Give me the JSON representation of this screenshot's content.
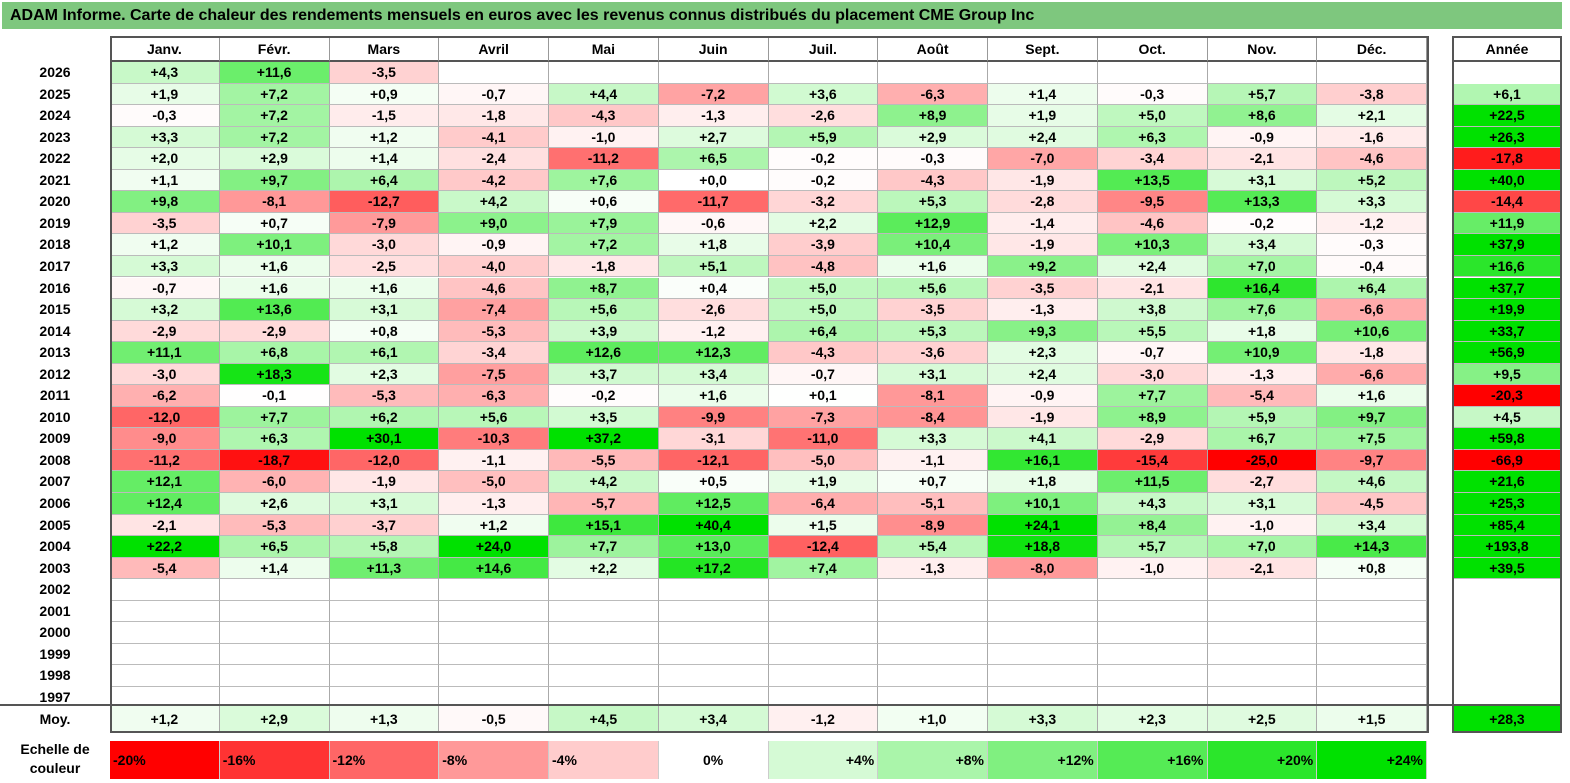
{
  "title": "ADAM Informe. Carte de chaleur des rendements mensuels en euros avec les revenus connus distribués du placement CME Group Inc",
  "chart_data": {
    "type": "heatmap",
    "months": [
      "Janv.",
      "Févr.",
      "Mars",
      "Avril",
      "Mai",
      "Juin",
      "Juil.",
      "Août",
      "Sept.",
      "Oct.",
      "Nov.",
      "Déc."
    ],
    "year_header": "Année",
    "avg_label": "Moy.",
    "rows": [
      {
        "year": "2026",
        "values": [
          "+4,3",
          "+11,6",
          "-3,5",
          "",
          "",
          "",
          "",
          "",
          "",
          "",
          "",
          ""
        ],
        "annual": ""
      },
      {
        "year": "2025",
        "values": [
          "+1,9",
          "+7,2",
          "+0,9",
          "-0,7",
          "+4,4",
          "-7,2",
          "+3,6",
          "-6,3",
          "+1,4",
          "-0,3",
          "+5,7",
          "-3,8"
        ],
        "annual": "+6,1"
      },
      {
        "year": "2024",
        "values": [
          "-0,3",
          "+7,2",
          "-1,5",
          "-1,8",
          "-4,3",
          "-1,3",
          "-2,6",
          "+8,9",
          "+1,9",
          "+5,0",
          "+8,6",
          "+2,1"
        ],
        "annual": "+22,5"
      },
      {
        "year": "2023",
        "values": [
          "+3,3",
          "+7,2",
          "+1,2",
          "-4,1",
          "-1,0",
          "+2,7",
          "+5,9",
          "+2,9",
          "+2,4",
          "+6,3",
          "-0,9",
          "-1,6"
        ],
        "annual": "+26,3"
      },
      {
        "year": "2022",
        "values": [
          "+2,0",
          "+2,9",
          "+1,4",
          "-2,4",
          "-11,2",
          "+6,5",
          "-0,2",
          "-0,3",
          "-7,0",
          "-3,4",
          "-2,1",
          "-4,6"
        ],
        "annual": "-17,8"
      },
      {
        "year": "2021",
        "values": [
          "+1,1",
          "+9,7",
          "+6,4",
          "-4,2",
          "+7,6",
          "+0,0",
          "-0,2",
          "-4,3",
          "-1,9",
          "+13,5",
          "+3,1",
          "+5,2"
        ],
        "annual": "+40,0"
      },
      {
        "year": "2020",
        "values": [
          "+9,8",
          "-8,1",
          "-12,7",
          "+4,2",
          "+0,6",
          "-11,7",
          "-3,2",
          "+5,3",
          "-2,8",
          "-9,5",
          "+13,3",
          "+3,3"
        ],
        "annual": "-14,4"
      },
      {
        "year": "2019",
        "values": [
          "-3,5",
          "+0,7",
          "-7,9",
          "+9,0",
          "+7,9",
          "-0,6",
          "+2,2",
          "+12,9",
          "-1,4",
          "-4,6",
          "-0,2",
          "-1,2"
        ],
        "annual": "+11,9"
      },
      {
        "year": "2018",
        "values": [
          "+1,2",
          "+10,1",
          "-3,0",
          "-0,9",
          "+7,2",
          "+1,8",
          "-3,9",
          "+10,4",
          "-1,9",
          "+10,3",
          "+3,4",
          "-0,3"
        ],
        "annual": "+37,9"
      },
      {
        "year": "2017",
        "values": [
          "+3,3",
          "+1,6",
          "-2,5",
          "-4,0",
          "-1,8",
          "+5,1",
          "-4,8",
          "+1,6",
          "+9,2",
          "+2,4",
          "+7,0",
          "-0,4"
        ],
        "annual": "+16,6"
      },
      {
        "year": "2016",
        "values": [
          "-0,7",
          "+1,6",
          "+1,6",
          "-4,6",
          "+8,7",
          "+0,4",
          "+5,0",
          "+5,6",
          "-3,5",
          "-2,1",
          "+16,4",
          "+6,4"
        ],
        "annual": "+37,7"
      },
      {
        "year": "2015",
        "values": [
          "+3,2",
          "+13,6",
          "+3,1",
          "-7,4",
          "+5,6",
          "-2,6",
          "+5,0",
          "-3,5",
          "-1,3",
          "+3,8",
          "+7,6",
          "-6,6"
        ],
        "annual": "+19,9"
      },
      {
        "year": "2014",
        "values": [
          "-2,9",
          "-2,9",
          "+0,8",
          "-5,3",
          "+3,9",
          "-1,2",
          "+6,4",
          "+5,3",
          "+9,3",
          "+5,5",
          "+1,8",
          "+10,6"
        ],
        "annual": "+33,7"
      },
      {
        "year": "2013",
        "values": [
          "+11,1",
          "+6,8",
          "+6,1",
          "-3,4",
          "+12,6",
          "+12,3",
          "-4,3",
          "-3,6",
          "+2,3",
          "-0,7",
          "+10,9",
          "-1,8"
        ],
        "annual": "+56,9"
      },
      {
        "year": "2012",
        "values": [
          "-3,0",
          "+18,3",
          "+2,3",
          "-7,5",
          "+3,7",
          "+3,4",
          "-0,7",
          "+3,1",
          "+2,4",
          "-3,0",
          "-1,3",
          "-6,6"
        ],
        "annual": "+9,5"
      },
      {
        "year": "2011",
        "values": [
          "-6,2",
          "-0,1",
          "-5,3",
          "-6,3",
          "-0,2",
          "+1,6",
          "+0,1",
          "-8,1",
          "-0,9",
          "+7,7",
          "-5,4",
          "+1,6"
        ],
        "annual": "-20,3"
      },
      {
        "year": "2010",
        "values": [
          "-12,0",
          "+7,7",
          "+6,2",
          "+5,6",
          "+3,5",
          "-9,9",
          "-7,3",
          "-8,4",
          "-1,9",
          "+8,9",
          "+5,9",
          "+9,7"
        ],
        "annual": "+4,5"
      },
      {
        "year": "2009",
        "values": [
          "-9,0",
          "+6,3",
          "+30,1",
          "-10,3",
          "+37,2",
          "-3,1",
          "-11,0",
          "+3,3",
          "+4,1",
          "-2,9",
          "+6,7",
          "+7,5"
        ],
        "annual": "+59,8"
      },
      {
        "year": "2008",
        "values": [
          "-11,2",
          "-18,7",
          "-12,0",
          "-1,1",
          "-5,5",
          "-12,1",
          "-5,0",
          "-1,1",
          "+16,1",
          "-15,4",
          "-25,0",
          "-9,7"
        ],
        "annual": "-66,9"
      },
      {
        "year": "2007",
        "values": [
          "+12,1",
          "-6,0",
          "-1,9",
          "-5,0",
          "+4,2",
          "+0,5",
          "+1,9",
          "+0,7",
          "+1,8",
          "+11,5",
          "-2,7",
          "+4,6"
        ],
        "annual": "+21,6"
      },
      {
        "year": "2006",
        "values": [
          "+12,4",
          "+2,6",
          "+3,1",
          "-1,3",
          "-5,7",
          "+12,5",
          "-6,4",
          "-5,1",
          "+10,1",
          "+4,3",
          "+3,1",
          "-4,5"
        ],
        "annual": "+25,3"
      },
      {
        "year": "2005",
        "values": [
          "-2,1",
          "-5,3",
          "-3,7",
          "+1,2",
          "+15,1",
          "+40,4",
          "+1,5",
          "-8,9",
          "+24,1",
          "+8,4",
          "-1,0",
          "+3,4"
        ],
        "annual": "+85,4"
      },
      {
        "year": "2004",
        "values": [
          "+22,2",
          "+6,5",
          "+5,8",
          "+24,0",
          "+7,7",
          "+13,0",
          "-12,4",
          "+5,4",
          "+18,8",
          "+5,7",
          "+7,0",
          "+14,3"
        ],
        "annual": "+193,8"
      },
      {
        "year": "2003",
        "values": [
          "-5,4",
          "+1,4",
          "+11,3",
          "+14,6",
          "+2,2",
          "+17,2",
          "+7,4",
          "-1,3",
          "-8,0",
          "-1,0",
          "-2,1",
          "+0,8"
        ],
        "annual": "+39,5"
      },
      {
        "year": "2002",
        "values": [
          "",
          "",
          "",
          "",
          "",
          "",
          "",
          "",
          "",
          "",
          "",
          ""
        ],
        "annual": ""
      },
      {
        "year": "2001",
        "values": [
          "",
          "",
          "",
          "",
          "",
          "",
          "",
          "",
          "",
          "",
          "",
          ""
        ],
        "annual": ""
      },
      {
        "year": "2000",
        "values": [
          "",
          "",
          "",
          "",
          "",
          "",
          "",
          "",
          "",
          "",
          "",
          ""
        ],
        "annual": ""
      },
      {
        "year": "1999",
        "values": [
          "",
          "",
          "",
          "",
          "",
          "",
          "",
          "",
          "",
          "",
          "",
          ""
        ],
        "annual": ""
      },
      {
        "year": "1998",
        "values": [
          "",
          "",
          "",
          "",
          "",
          "",
          "",
          "",
          "",
          "",
          "",
          ""
        ],
        "annual": ""
      },
      {
        "year": "1997",
        "values": [
          "",
          "",
          "",
          "",
          "",
          "",
          "",
          "",
          "",
          "",
          "",
          ""
        ],
        "annual": ""
      }
    ],
    "averages": {
      "values": [
        "+1,2",
        "+2,9",
        "+1,3",
        "-0,5",
        "+4,5",
        "+3,4",
        "-1,2",
        "+1,0",
        "+3,3",
        "+2,3",
        "+2,5",
        "+1,5"
      ],
      "annual": "+28,3"
    },
    "scale": {
      "label": "Echelle de couleur",
      "steps": [
        {
          "label": "-20%",
          "value": -20
        },
        {
          "label": "-16%",
          "value": -16
        },
        {
          "label": "-12%",
          "value": -12
        },
        {
          "label": "-8%",
          "value": -8
        },
        {
          "label": "-4%",
          "value": -4
        },
        {
          "label": "0%",
          "value": 0
        },
        {
          "label": "+4%",
          "value": 4
        },
        {
          "label": "+8%",
          "value": 8
        },
        {
          "label": "+12%",
          "value": 12
        },
        {
          "label": "+16%",
          "value": 16
        },
        {
          "label": "+20%",
          "value": 20
        },
        {
          "label": "+24%",
          "value": 24
        }
      ]
    },
    "colors": {
      "negative": "#ff0000",
      "neutral": "#ffffff",
      "positive": "#00e000",
      "title_bg": "#7ec77e"
    }
  }
}
